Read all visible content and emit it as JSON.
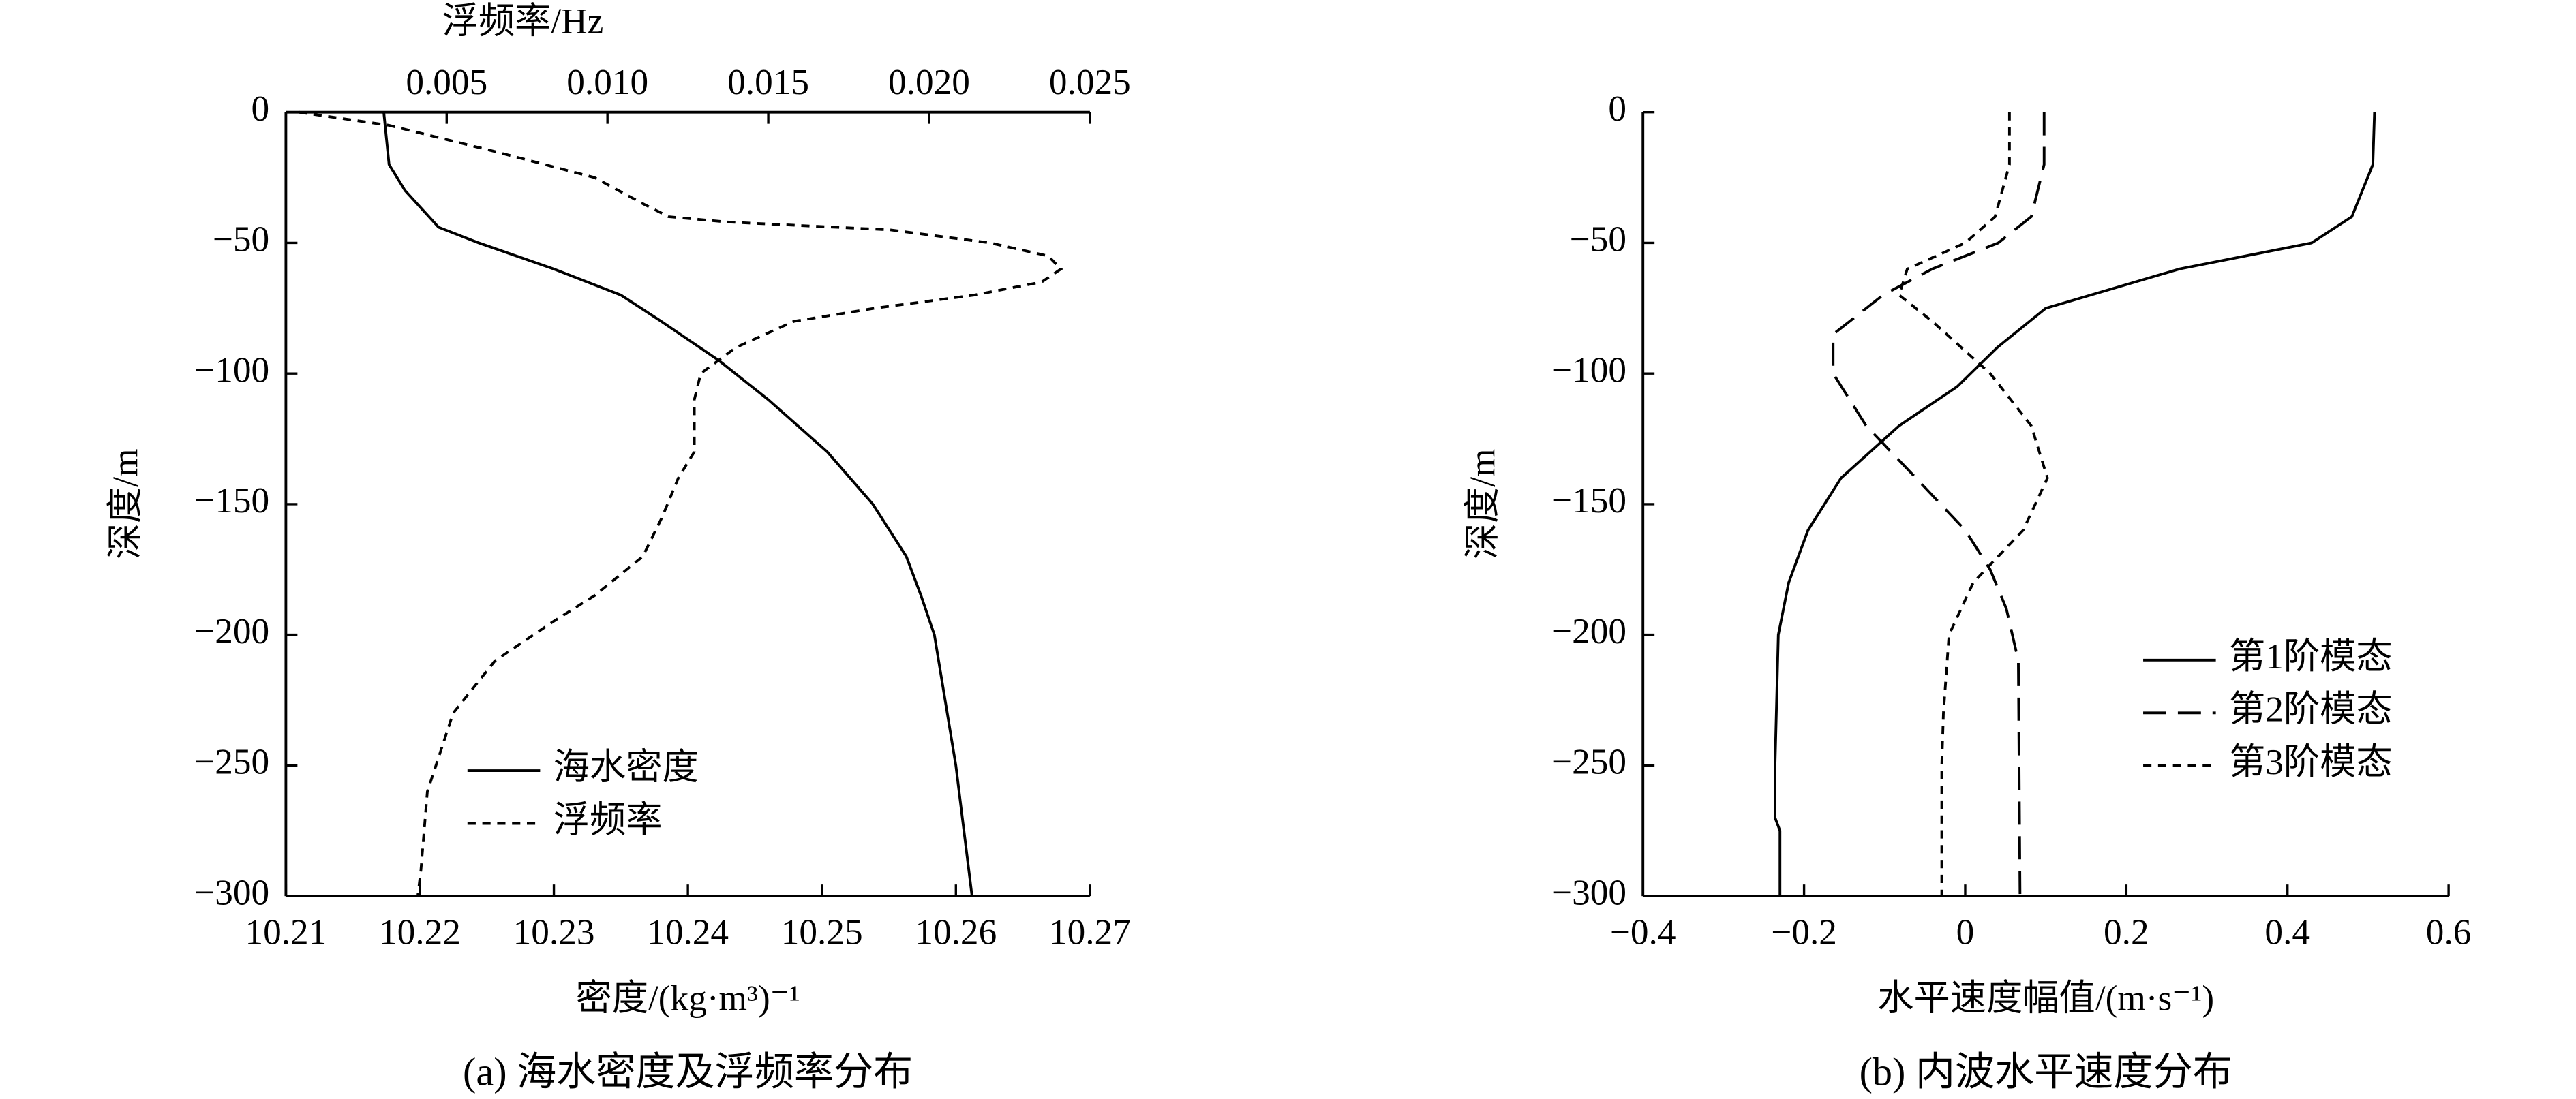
{
  "chart_data": [
    {
      "type": "line",
      "xlabel": "密度/(kg·m³)⁻¹",
      "x2label": "浮频率/Hz",
      "ylabel": "深度/m",
      "caption": "(a) 海水密度及浮频率分布",
      "xlim": [
        10.21,
        10.27
      ],
      "xticks": [
        10.21,
        10.22,
        10.23,
        10.24,
        10.25,
        10.26,
        10.27
      ],
      "x2lim": [
        0,
        0.025
      ],
      "x2ticks": [
        0.005,
        {
          "value": 0.01,
          "label": "0.010"
        },
        0.015,
        {
          "value": 0.02,
          "label": "0.020"
        },
        0.025
      ],
      "ylim": [
        -300,
        0
      ],
      "yticks": [
        0,
        {
          "value": -50,
          "label": "−50"
        },
        {
          "value": -100,
          "label": "−100"
        },
        {
          "value": -150,
          "label": "−150"
        },
        {
          "value": -200,
          "label": "−200"
        },
        {
          "value": -250,
          "label": "−250"
        },
        {
          "value": -300,
          "label": "−300"
        }
      ],
      "legend": "lower center",
      "series": [
        {
          "name": "海水密度",
          "color": "#000000",
          "dash": "solid",
          "x": [
            10.2173,
            10.2177,
            10.2189,
            10.2214,
            10.2244,
            10.23,
            10.235,
            10.238,
            10.2423,
            10.246,
            10.2504,
            10.2538,
            10.2563,
            10.2574,
            10.2584,
            10.26,
            10.2612
          ],
          "y": [
            0,
            -20,
            -30,
            -44,
            -50,
            -60,
            -70,
            -80,
            -95,
            -110,
            -130,
            -150,
            -170,
            -185,
            -200,
            -250,
            -300
          ]
        },
        {
          "name": "浮频率",
          "color": "#000000",
          "dash": "dotted",
          "axis": "x2",
          "x": [
            0.0004,
            0.0032,
            0.0065,
            0.0096,
            0.0111,
            0.0119,
            0.0137,
            0.0188,
            0.0219,
            0.0237,
            0.0241,
            0.0235,
            0.0214,
            0.0183,
            0.0158,
            0.014,
            0.0129,
            0.0127,
            0.0127,
            0.0122,
            0.0117,
            0.0111,
            0.0096,
            0.0083,
            0.0065,
            0.0052,
            0.0044,
            0.0042,
            0.0041
          ],
          "y": [
            0,
            -5,
            -15,
            -25,
            -35,
            -40,
            -42,
            -45,
            -50,
            -55,
            -60,
            -65,
            -70,
            -75,
            -80,
            -90,
            -100,
            -110,
            -130,
            -140,
            -155,
            -170,
            -185,
            -195,
            -210,
            -230,
            -260,
            -290,
            -300
          ]
        }
      ]
    },
    {
      "type": "line",
      "xlabel": "水平速度幅值/(m·s⁻¹)",
      "ylabel": "深度/m",
      "caption": "(b) 内波水平速度分布",
      "xlim": [
        -0.4,
        0.6
      ],
      "xticks": [
        {
          "value": -0.4,
          "label": "−0.4"
        },
        {
          "value": -0.2,
          "label": "−0.2"
        },
        0,
        0.2,
        0.4,
        0.6
      ],
      "ylim": [
        -300,
        0
      ],
      "yticks": [
        0,
        {
          "value": -50,
          "label": "−50"
        },
        {
          "value": -100,
          "label": "−100"
        },
        {
          "value": -150,
          "label": "−150"
        },
        {
          "value": -200,
          "label": "−200"
        },
        {
          "value": -250,
          "label": "−250"
        },
        {
          "value": -300,
          "label": "−300"
        }
      ],
      "legend": "center right",
      "series": [
        {
          "name": "第1阶模态",
          "color": "#000000",
          "dash": "solid",
          "x": [
            0.508,
            0.506,
            0.48,
            0.43,
            0.266,
            0.1,
            0.04,
            -0.01,
            -0.082,
            -0.154,
            -0.195,
            -0.219,
            -0.232,
            -0.236,
            -0.236,
            -0.23,
            -0.23
          ],
          "y": [
            0,
            -20,
            -40,
            -50,
            -60,
            -75,
            -90,
            -105,
            -120,
            -140,
            -160,
            -180,
            -200,
            -250,
            -270,
            -275,
            -300
          ]
        },
        {
          "name": "第2阶模态",
          "color": "#000000",
          "dash": "dashed",
          "x": [
            0.098,
            0.098,
            0.082,
            0.041,
            -0.041,
            -0.102,
            -0.164,
            -0.164,
            -0.123,
            -0.061,
            0,
            0.031,
            0.051,
            0.066,
            0.068
          ],
          "y": [
            0,
            -20,
            -40,
            -50,
            -60,
            -70,
            -85,
            -100,
            -120,
            -140,
            -160,
            -175,
            -190,
            -210,
            -300
          ]
        },
        {
          "name": "第3阶模态",
          "color": "#000000",
          "dash": "dotted",
          "x": [
            0.055,
            0.055,
            0.037,
            0,
            -0.072,
            -0.082,
            -0.041,
            0.031,
            0.082,
            0.102,
            0.072,
            0.01,
            -0.02,
            -0.027,
            -0.029,
            -0.029
          ],
          "y": [
            0,
            -20,
            -40,
            -50,
            -60,
            -70,
            -80,
            -100,
            -120,
            -140,
            -160,
            -180,
            -200,
            -230,
            -250,
            -300
          ]
        }
      ]
    }
  ]
}
